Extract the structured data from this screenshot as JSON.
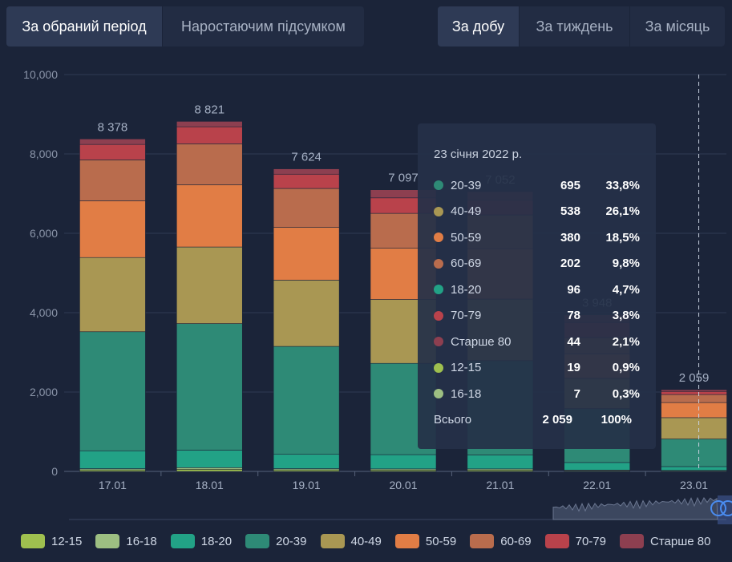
{
  "mode_tabs": [
    {
      "label": "За обраний період",
      "active": true
    },
    {
      "label": "Наростаючим підсумком",
      "active": false
    }
  ],
  "period_tabs": [
    {
      "label": "За добу",
      "active": true
    },
    {
      "label": "За тиждень",
      "active": false
    },
    {
      "label": "За місяць",
      "active": false
    }
  ],
  "chart_data": {
    "type": "bar",
    "stacked": true,
    "categories": [
      "17.01",
      "18.01",
      "19.01",
      "20.01",
      "21.01",
      "22.01",
      "23.01"
    ],
    "totals": [
      8378,
      8821,
      7624,
      7097,
      7052,
      3948,
      2059
    ],
    "total_labels": [
      "8 378",
      "8 821",
      "7 624",
      "7 097",
      "7 052",
      "3 948",
      "2 059"
    ],
    "ylim": [
      0,
      10000
    ],
    "yticks": [
      0,
      2000,
      4000,
      6000,
      8000,
      10000
    ],
    "ytick_labels": [
      "0",
      "2,000",
      "4,000",
      "6,000",
      "8,000",
      "10,000"
    ],
    "grid": true,
    "legend_position": "bottom",
    "series": [
      {
        "name": "12-15",
        "color": "#9fc04f",
        "values": [
          40,
          55,
          40,
          35,
          35,
          20,
          19
        ]
      },
      {
        "name": "16-18",
        "color": "#9dbf82",
        "values": [
          30,
          40,
          30,
          28,
          28,
          14,
          7
        ]
      },
      {
        "name": "18-20",
        "color": "#22a286",
        "values": [
          450,
          440,
          360,
          360,
          350,
          190,
          96
        ]
      },
      {
        "name": "20-39",
        "color": "#2e8a76",
        "values": [
          3000,
          3190,
          2720,
          2300,
          2380,
          1360,
          695
        ]
      },
      {
        "name": "40-49",
        "color": "#a99753",
        "values": [
          1870,
          1930,
          1670,
          1610,
          1550,
          760,
          538
        ]
      },
      {
        "name": "50-59",
        "color": "#e17d45",
        "values": [
          1430,
          1570,
          1330,
          1290,
          1270,
          620,
          380
        ]
      },
      {
        "name": "60-69",
        "color": "#b96c4d",
        "values": [
          1030,
          1030,
          980,
          880,
          850,
          410,
          202
        ]
      },
      {
        "name": "70-79",
        "color": "#b9424b",
        "values": [
          390,
          430,
          360,
          390,
          380,
          380,
          78
        ]
      },
      {
        "name": "Старше 80",
        "color": "#8d3f50",
        "values": [
          138,
          136,
          134,
          204,
          209,
          194,
          44
        ]
      }
    ]
  },
  "tooltip": {
    "date": "23 січня 2022 р.",
    "rows": [
      {
        "label": "20-39",
        "value": "695",
        "pct": "33,8%",
        "color": "#2e8a76"
      },
      {
        "label": "40-49",
        "value": "538",
        "pct": "26,1%",
        "color": "#a99753"
      },
      {
        "label": "50-59",
        "value": "380",
        "pct": "18,5%",
        "color": "#e17d45"
      },
      {
        "label": "60-69",
        "value": "202",
        "pct": "9,8%",
        "color": "#b96c4d"
      },
      {
        "label": "18-20",
        "value": "96",
        "pct": "4,7%",
        "color": "#22a286"
      },
      {
        "label": "70-79",
        "value": "78",
        "pct": "3,8%",
        "color": "#b9424b"
      },
      {
        "label": "Старше 80",
        "value": "44",
        "pct": "2,1%",
        "color": "#8d3f50"
      },
      {
        "label": "12-15",
        "value": "19",
        "pct": "0,9%",
        "color": "#9fc04f"
      },
      {
        "label": "16-18",
        "value": "7",
        "pct": "0,3%",
        "color": "#9dbf82"
      }
    ],
    "total": {
      "label": "Всього",
      "value": "2 059",
      "pct": "100%"
    }
  },
  "legend": [
    {
      "label": "12-15",
      "color": "#9fc04f"
    },
    {
      "label": "16-18",
      "color": "#9dbf82"
    },
    {
      "label": "18-20",
      "color": "#22a286"
    },
    {
      "label": "20-39",
      "color": "#2e8a76"
    },
    {
      "label": "40-49",
      "color": "#a99753"
    },
    {
      "label": "50-59",
      "color": "#e17d45"
    },
    {
      "label": "60-69",
      "color": "#b96c4d"
    },
    {
      "label": "70-79",
      "color": "#b9424b"
    },
    {
      "label": "Старше 80",
      "color": "#8d3f50"
    }
  ]
}
